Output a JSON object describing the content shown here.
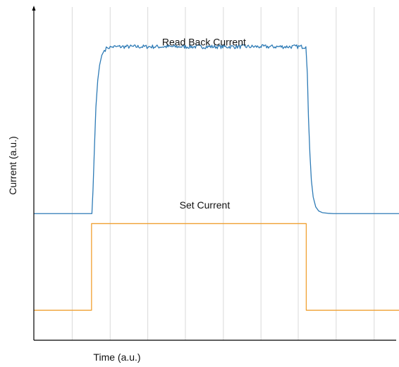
{
  "chart_data": {
    "type": "line",
    "title": "",
    "xlabel": "Time (a.u.)",
    "ylabel": "Current (a.u.)",
    "xlim": [
      0,
      100
    ],
    "ylim": [
      0,
      100
    ],
    "grid": {
      "vertical": true,
      "horizontal": false
    },
    "x_gridlines": [
      10.5,
      20.9,
      31.2,
      41.5,
      51.9,
      62.2,
      72.4,
      82.8,
      93.2
    ],
    "ticks_labeled": false,
    "legend": "none",
    "annotations": [
      {
        "text": "Read Back Current",
        "x": 46.6,
        "y": 88.5
      },
      {
        "text": "Set Current",
        "x": 46.8,
        "y": 39.5
      }
    ],
    "series": [
      {
        "color": "#2e7bb6",
        "noise_amplitude": 0.6,
        "x": [
          0,
          15.9,
          16.2,
          16.6,
          17.0,
          17.5,
          18.0,
          18.6,
          19.3,
          20.1,
          21.2,
          22.5,
          40.0,
          62.0,
          74.5,
          74.9,
          75.2,
          75.6,
          76.0,
          76.5,
          77.2,
          78.0,
          79.0,
          80.5,
          82.0,
          100
        ],
        "y": [
          38.0,
          38.0,
          45.0,
          58.0,
          70.0,
          78.0,
          82.5,
          85.5,
          87.0,
          87.8,
          88.0,
          88.1,
          88.1,
          88.1,
          88.1,
          80.0,
          67.0,
          56.0,
          48.0,
          43.0,
          40.0,
          38.8,
          38.3,
          38.1,
          38.0,
          38.0
        ]
      },
      {
        "color": "#f0a030",
        "x": [
          0,
          15.8,
          15.8,
          74.6,
          74.6,
          100
        ],
        "y": [
          9.0,
          9.0,
          35.0,
          35.0,
          9.0,
          9.0
        ]
      }
    ]
  }
}
